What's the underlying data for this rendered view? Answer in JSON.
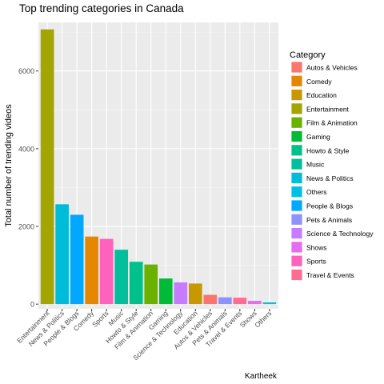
{
  "chart_data": {
    "type": "bar",
    "title": "Top trending categories in Canada",
    "xlabel": "",
    "ylabel": "Total number of trending videos",
    "caption": "Kartheek",
    "ylim": [
      -120,
      7250
    ],
    "yticks": [
      0,
      2000,
      4000,
      6000
    ],
    "grid": true,
    "legend_position": "right",
    "legend_title": "Category",
    "categories": [
      "Entertainment",
      "News & Politics",
      "People & Blogs",
      "Comedy",
      "Sports",
      "Music",
      "Howto & Style",
      "Film & Animation",
      "Gaming",
      "Science & Technology",
      "Education",
      "Autos & Vehicles",
      "Pets & Animals",
      "Travel & Events",
      "Shows",
      "Others"
    ],
    "values": [
      7070,
      2570,
      2300,
      1740,
      1680,
      1400,
      1090,
      1020,
      660,
      560,
      530,
      240,
      175,
      165,
      85,
      45
    ],
    "legend": [
      {
        "label": "Autos & Vehicles",
        "color": "#F8766D"
      },
      {
        "label": "Comedy",
        "color": "#E58700"
      },
      {
        "label": "Education",
        "color": "#C99800"
      },
      {
        "label": "Entertainment",
        "color": "#A3A500"
      },
      {
        "label": "Film & Animation",
        "color": "#6BB100"
      },
      {
        "label": "Gaming",
        "color": "#00BA38"
      },
      {
        "label": "Howto & Style",
        "color": "#00C08B"
      },
      {
        "label": "Music",
        "color": "#00BF9C"
      },
      {
        "label": "News & Politics",
        "color": "#00BCD8"
      },
      {
        "label": "Others",
        "color": "#00C0E3"
      },
      {
        "label": "People & Blogs",
        "color": "#00A9FF"
      },
      {
        "label": "Pets & Animals",
        "color": "#8F91FF"
      },
      {
        "label": "Science & Technology",
        "color": "#C77CFF"
      },
      {
        "label": "Shows",
        "color": "#E76BF3"
      },
      {
        "label": "Sports",
        "color": "#FF62BC"
      },
      {
        "label": "Travel & Events",
        "color": "#FF6C91"
      }
    ],
    "panel_background": "#EBEBEB"
  }
}
